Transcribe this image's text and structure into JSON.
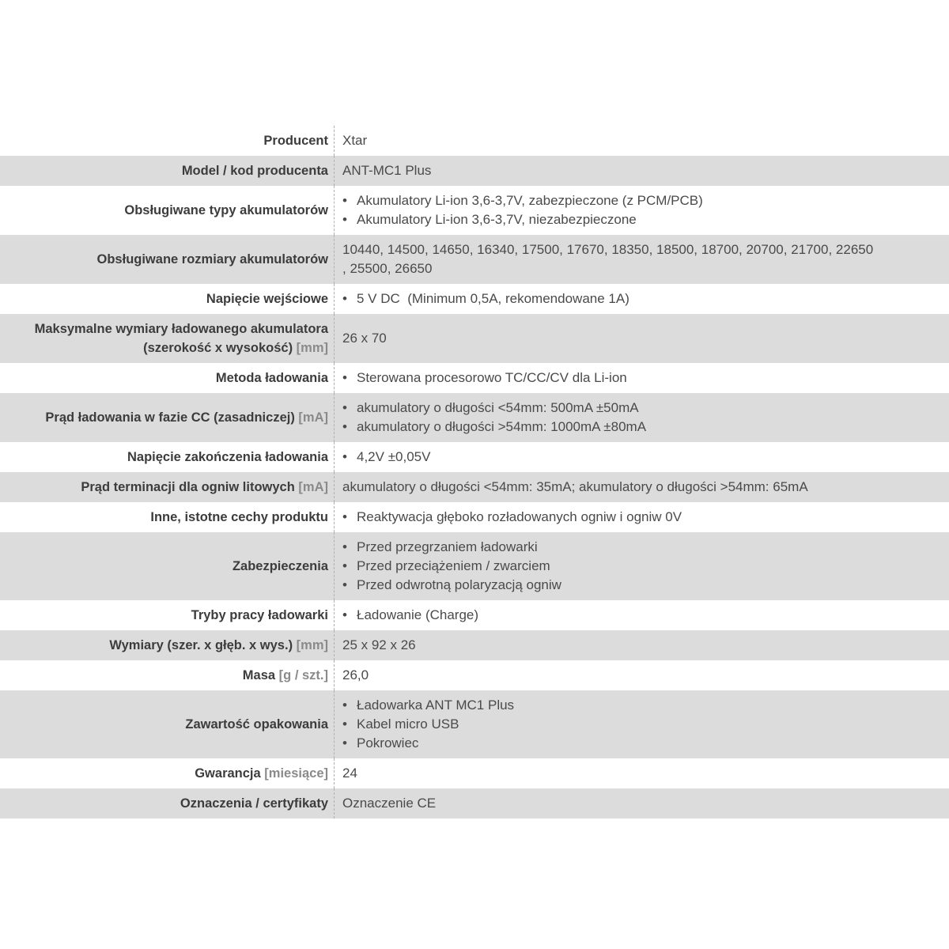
{
  "colors": {
    "row_alt_bg": "#dcdcdc",
    "label_color": "#3c3c3c",
    "label_unit_color": "#8a8a8a",
    "value_color": "#4a4a4a",
    "separator_color": "#b0b0b0"
  },
  "table": {
    "rows": [
      {
        "label": "Producent",
        "value": {
          "type": "text",
          "lines": [
            "Xtar"
          ]
        }
      },
      {
        "label": "Model / kod producenta",
        "value": {
          "type": "text",
          "lines": [
            "ANT-MC1 Plus"
          ]
        }
      },
      {
        "label": "Obsługiwane typy akumulatorów",
        "value": {
          "type": "bullets",
          "items": [
            "Akumulatory Li-ion 3,6-3,7V, zabezpieczone (z PCM/PCB)",
            "Akumulatory Li-ion 3,6-3,7V, niezabezpieczone"
          ]
        }
      },
      {
        "label": "Obsługiwane rozmiary akumulatorów",
        "value": {
          "type": "text",
          "lines": [
            "10440, 14500, 14650, 16340, 17500, 17670, 18350, 18500, 18700, 20700, 21700, 22650",
            ", 25500, 26650"
          ]
        }
      },
      {
        "label": "Napięcie wejściowe",
        "value": {
          "type": "bullets",
          "items": [
            "5 V DC  (Minimum 0,5A, rekomendowane 1A)"
          ]
        }
      },
      {
        "label": "Maksymalne wymiary ładowanego akumulatora (szerokość x wysokość)",
        "unit": "[mm]",
        "value": {
          "type": "text",
          "lines": [
            "26 x 70"
          ]
        }
      },
      {
        "label": "Metoda ładowania",
        "value": {
          "type": "bullets",
          "items": [
            "Sterowana procesorowo TC/CC/CV dla Li-ion"
          ]
        }
      },
      {
        "label": "Prąd ładowania w fazie CC (zasadniczej)",
        "unit": "[mA]",
        "value": {
          "type": "bullets",
          "items": [
            "akumulatory o długości <54mm: 500mA ±50mA",
            "akumulatory o długości >54mm: 1000mA ±80mA"
          ]
        }
      },
      {
        "label": "Napięcie zakończenia ładowania",
        "value": {
          "type": "bullets",
          "items": [
            "4,2V ±0,05V"
          ]
        }
      },
      {
        "label": "Prąd terminacji dla ogniw litowych",
        "unit": "[mA]",
        "value": {
          "type": "text",
          "lines": [
            "akumulatory o długości <54mm: 35mA; akumulatory o długości >54mm: 65mA"
          ]
        }
      },
      {
        "label": "Inne, istotne cechy produktu",
        "value": {
          "type": "bullets",
          "items": [
            "Reaktywacja głęboko rozładowanych ogniw i ogniw 0V"
          ]
        }
      },
      {
        "label": "Zabezpieczenia",
        "value": {
          "type": "bullets",
          "items": [
            "Przed przegrzaniem ładowarki",
            "Przed przeciążeniem / zwarciem",
            "Przed odwrotną polaryzacją ogniw"
          ]
        }
      },
      {
        "label": "Tryby pracy ładowarki",
        "value": {
          "type": "bullets",
          "items": [
            "Ładowanie (Charge)"
          ]
        }
      },
      {
        "label": "Wymiary (szer. x głęb. x wys.)",
        "unit": "[mm]",
        "value": {
          "type": "text",
          "lines": [
            "25 x 92 x 26"
          ]
        }
      },
      {
        "label": "Masa",
        "unit": "[g / szt.]",
        "value": {
          "type": "text",
          "lines": [
            "26,0"
          ]
        }
      },
      {
        "label": "Zawartość opakowania",
        "value": {
          "type": "bullets",
          "items": [
            "Ładowarka ANT MC1 Plus",
            "Kabel micro USB",
            "Pokrowiec"
          ]
        }
      },
      {
        "label": "Gwarancja",
        "unit": "[miesiące]",
        "value": {
          "type": "text",
          "lines": [
            "24"
          ]
        }
      },
      {
        "label": "Oznaczenia / certyfikaty",
        "value": {
          "type": "text",
          "lines": [
            "Oznaczenie CE"
          ]
        }
      }
    ]
  }
}
